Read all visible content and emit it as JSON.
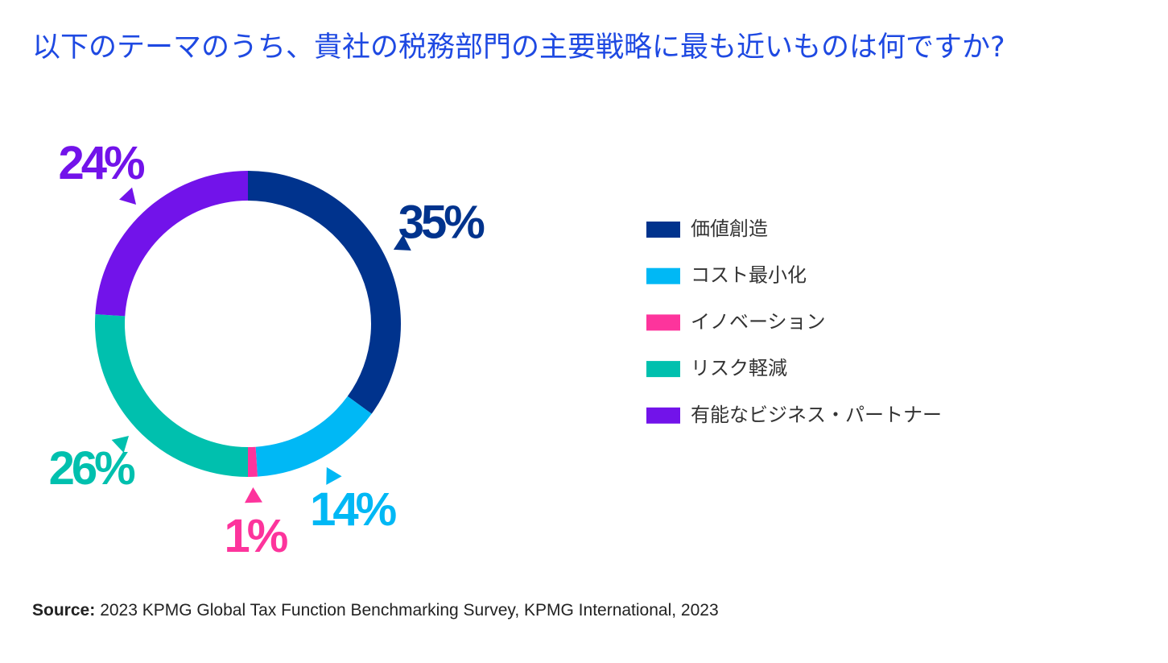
{
  "chart_data": {
    "type": "donut",
    "title": "以下のテーマのうち、貴社の税務部門の主要戦略に最も近いものは何ですか?",
    "categories": [
      "価値創造",
      "コスト最小化",
      "イノベーション",
      "リスク軽減",
      "有能なビジネス・パートナー"
    ],
    "values": [
      35,
      14,
      1,
      26,
      24
    ],
    "value_labels": [
      "35%",
      "14%",
      "1%",
      "26%",
      "24%"
    ],
    "colors": [
      "#00338d",
      "#00b8f5",
      "#fd349c",
      "#00c0ae",
      "#7213ea"
    ],
    "source_label": "Source:",
    "source": "2023 KPMG Global Tax Function Benchmarking Survey, KPMG International, 2023"
  }
}
